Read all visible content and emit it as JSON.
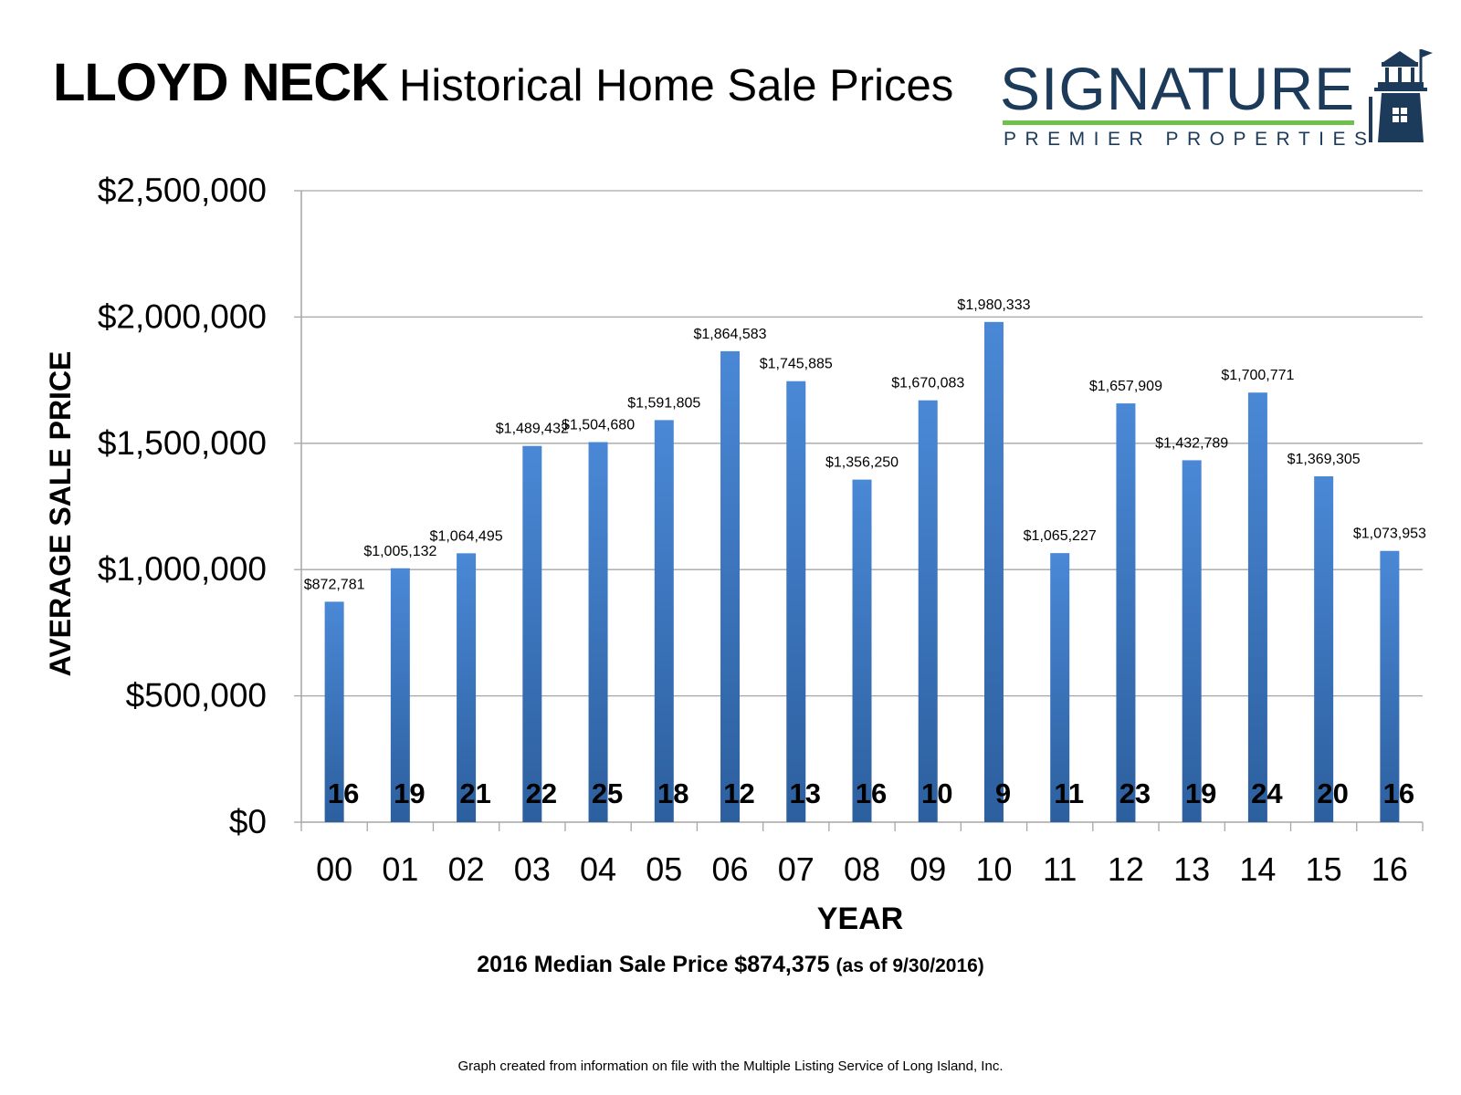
{
  "header": {
    "title_bold": "LLOYD NECK",
    "title_rest": "Historical Home Sale Prices"
  },
  "logo": {
    "brand": "SIGNATURE",
    "tagline": "PREMIER PROPERTIES",
    "icon": "lighthouse-icon",
    "brand_color": "#1c3a5a",
    "accent_color": "#6cc24a"
  },
  "chart_data": {
    "type": "bar",
    "categories": [
      "00",
      "01",
      "02",
      "03",
      "04",
      "05",
      "06",
      "07",
      "08",
      "09",
      "10",
      "11",
      "12",
      "13",
      "14",
      "15",
      "16"
    ],
    "values": [
      872781,
      1005132,
      1064495,
      1489432,
      1504680,
      1591805,
      1864583,
      1745885,
      1356250,
      1670083,
      1980333,
      1065227,
      1657909,
      1432789,
      1700771,
      1369305,
      1073953
    ],
    "value_labels": [
      "$872,781",
      "$1,005,132",
      "$1,064,495",
      "$1,489,432",
      "$1,504,680",
      "$1,591,805",
      "$1,864,583",
      "$1,745,885",
      "$1,356,250",
      "$1,670,083",
      "$1,980,333",
      "$1,065,227",
      "$1,657,909",
      "$1,432,789",
      "$1,700,771",
      "$1,369,305",
      "$1,073,953"
    ],
    "counts": [
      "16",
      "19",
      "21",
      "22",
      "25",
      "18",
      "12",
      "13",
      "16",
      "10",
      "9",
      "11",
      "23",
      "19",
      "24",
      "20",
      "16"
    ],
    "xlabel": "YEAR",
    "ylabel": "AVERAGE SALE PRICE",
    "ylim": [
      0,
      2500000
    ],
    "yticks": [
      0,
      500000,
      1000000,
      1500000,
      2000000,
      2500000
    ],
    "ytick_labels": [
      "$0",
      "$500,000",
      "$1,000,000",
      "$1,500,000",
      "$2,000,000",
      "$2,500,000"
    ],
    "grid": true,
    "bar_color_top": "#4a88d6",
    "bar_color_bottom": "#2c5f9e"
  },
  "footnote": {
    "main": "2016 Median Sale Price $874,375",
    "note": "(as of 9/30/2016)"
  },
  "source": "Graph created from information on file with the Multiple Listing Service of Long Island, Inc."
}
